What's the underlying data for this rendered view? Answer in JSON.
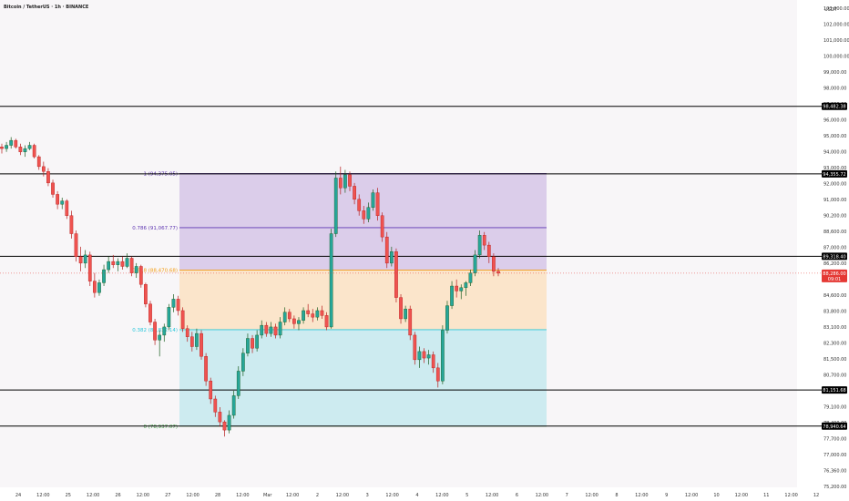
{
  "header": {
    "title": "Bitcoin / TetherUS · 1h · BINANCE",
    "currency": "USDT"
  },
  "colors": {
    "background": "#f8f6f8",
    "up": "#26a69a",
    "down": "#ef5350",
    "candle_body_up": "#1b5e20",
    "candle_body_down": "#b71c1c",
    "fib_top_zone": "#d6c6e8",
    "fib_mid_zone": "#fbe2c3",
    "fib_bottom_zone": "#c6e9ef",
    "fib_1_line": "#5e35b1",
    "fib_0786_line": "#5e35b1",
    "fib_0618_line": "#f39c12",
    "fib_0382_line": "#26c6da",
    "fib_0_line": "#43a047",
    "hline": "#000000",
    "current_price_badge": "#e53935",
    "level_badge": "#000000"
  },
  "chart_data": {
    "type": "candlestick",
    "title": "Bitcoin / TetherUS · 1h · BINANCE",
    "y_unit": "USDT",
    "ylim": [
      75200,
      104200
    ],
    "x_ticks": [
      "24",
      "12:00",
      "25",
      "12:00",
      "26",
      "12:00",
      "27",
      "12:00",
      "28",
      "12:00",
      "Mar",
      "12:00",
      "2",
      "12:00",
      "3",
      "12:00",
      "4",
      "12:00",
      "5",
      "12:00",
      "6",
      "12:00",
      "7",
      "12:00",
      "8",
      "12:00",
      "9",
      "12:00",
      "10",
      "12:00",
      "11",
      "12:00",
      "12"
    ],
    "y_ticks": [
      "103,000.00",
      "102,000.00",
      "101,000.00",
      "100,000.00",
      "99,000.00",
      "98,000.00",
      "97,000.00",
      "96,000.00",
      "95,000.00",
      "94,000.00",
      "93,000.00",
      "92,000.00",
      "91,000.00",
      "90,200.00",
      "88,600.00",
      "87,000.00",
      "86,200.00",
      "85,400.00",
      "84,600.00",
      "83,800.00",
      "83,100.00",
      "82,300.00",
      "81,500.00",
      "80,700.00",
      "79,900.00",
      "79,100.00",
      "78,400.00",
      "77,700.00",
      "77,000.00",
      "76,360.00",
      "75,200.00"
    ],
    "fib_levels": [
      {
        "ratio": "1",
        "label": "1 (94,375.05)",
        "price": 94375.05
      },
      {
        "ratio": "0.786",
        "label": "0.786 (91,067.77)",
        "price": 91067.77
      },
      {
        "ratio": "0.618",
        "label": "0.618 (88,470.68)",
        "price": 88470.68
      },
      {
        "ratio": "0.382",
        "label": "0.382 (84,832.14)",
        "price": 84832.14
      },
      {
        "ratio": "0",
        "label": "0 (78,937.07)",
        "price": 78937.07
      }
    ],
    "horizontal_levels": [
      {
        "price": 98482.38,
        "label": "98,482.38"
      },
      {
        "price": 94355.72,
        "label": "94,355.72"
      },
      {
        "price": 89318.4,
        "label": "89,318.40"
      },
      {
        "price": 81151.68,
        "label": "81,151.68"
      },
      {
        "price": 78940.64,
        "label": "78,940.64"
      }
    ],
    "current_price": {
      "price": 88286.0,
      "label": "88,286.00",
      "countdown": "09:01"
    },
    "candles": [
      [
        96000,
        96200,
        95600,
        95900
      ],
      [
        95900,
        96300,
        95700,
        96100
      ],
      [
        96100,
        96600,
        95900,
        96400
      ],
      [
        96400,
        96500,
        95900,
        96000
      ],
      [
        96000,
        96200,
        95500,
        95700
      ],
      [
        95700,
        96100,
        95400,
        95900
      ],
      [
        95900,
        96300,
        95800,
        96100
      ],
      [
        96100,
        96200,
        95300,
        95400
      ],
      [
        95400,
        95500,
        94600,
        94800
      ],
      [
        94800,
        95100,
        94200,
        94500
      ],
      [
        94500,
        94700,
        93600,
        93800
      ],
      [
        93800,
        94000,
        92900,
        93100
      ],
      [
        93100,
        93300,
        92200,
        92500
      ],
      [
        92500,
        92900,
        92200,
        92700
      ],
      [
        92700,
        92800,
        91600,
        91800
      ],
      [
        91800,
        92100,
        90400,
        90700
      ],
      [
        90700,
        90900,
        89000,
        89300
      ],
      [
        89300,
        89900,
        88400,
        88900
      ],
      [
        88900,
        89700,
        88600,
        89400
      ],
      [
        89400,
        89600,
        87500,
        87800
      ],
      [
        87800,
        88300,
        86800,
        87100
      ],
      [
        87100,
        87900,
        86900,
        87700
      ],
      [
        87700,
        88800,
        87500,
        88500
      ],
      [
        88500,
        89300,
        88300,
        89000
      ],
      [
        89000,
        89400,
        88600,
        88800
      ],
      [
        88800,
        89200,
        88400,
        89000
      ],
      [
        89000,
        89300,
        88500,
        88700
      ],
      [
        88700,
        89500,
        88600,
        89200
      ],
      [
        89200,
        89300,
        88100,
        88300
      ],
      [
        88300,
        88900,
        88000,
        88700
      ],
      [
        88700,
        88800,
        87400,
        87600
      ],
      [
        87600,
        87700,
        86200,
        86400
      ],
      [
        86400,
        86600,
        85100,
        85300
      ],
      [
        85300,
        85500,
        83900,
        84200
      ],
      [
        84200,
        84800,
        83200,
        84500
      ],
      [
        84500,
        85200,
        84100,
        85000
      ],
      [
        85000,
        86400,
        84800,
        86200
      ],
      [
        86200,
        87000,
        85900,
        86700
      ],
      [
        86700,
        86900,
        85700,
        86000
      ],
      [
        86000,
        86200,
        84700,
        84900
      ],
      [
        84900,
        85100,
        84100,
        84400
      ],
      [
        84400,
        84700,
        83500,
        83800
      ],
      [
        83800,
        84900,
        83600,
        84600
      ],
      [
        84600,
        84800,
        83000,
        83200
      ],
      [
        83200,
        83400,
        81400,
        81700
      ],
      [
        81700,
        81900,
        80300,
        80600
      ],
      [
        80600,
        80800,
        79500,
        79800
      ],
      [
        79800,
        80100,
        78900,
        79200
      ],
      [
        79200,
        79300,
        78300,
        78700
      ],
      [
        78700,
        79900,
        78500,
        79600
      ],
      [
        79600,
        81100,
        79400,
        80800
      ],
      [
        80800,
        82600,
        80600,
        82300
      ],
      [
        82300,
        83700,
        82000,
        83400
      ],
      [
        83400,
        84600,
        83200,
        84300
      ],
      [
        84300,
        84500,
        83400,
        83700
      ],
      [
        83700,
        84800,
        83500,
        84500
      ],
      [
        84500,
        85400,
        84300,
        85100
      ],
      [
        85100,
        85300,
        84400,
        84600
      ],
      [
        84600,
        85300,
        84400,
        85000
      ],
      [
        85000,
        85200,
        84300,
        84500
      ],
      [
        84500,
        85600,
        84300,
        85300
      ],
      [
        85300,
        86200,
        85100,
        85900
      ],
      [
        85900,
        86100,
        85300,
        85500
      ],
      [
        85500,
        85700,
        84900,
        85200
      ],
      [
        85200,
        85600,
        84800,
        85400
      ],
      [
        85400,
        86200,
        85200,
        86000
      ],
      [
        86000,
        86400,
        85600,
        85800
      ],
      [
        85800,
        86100,
        85300,
        85600
      ],
      [
        85600,
        86200,
        85400,
        86000
      ],
      [
        86000,
        86300,
        85500,
        85700
      ],
      [
        85700,
        85900,
        84800,
        85000
      ],
      [
        85000,
        91000,
        84900,
        90700
      ],
      [
        90700,
        94500,
        90500,
        94100
      ],
      [
        94100,
        94800,
        93100,
        93500
      ],
      [
        93500,
        94600,
        93200,
        94300
      ],
      [
        94300,
        94500,
        93300,
        93600
      ],
      [
        93600,
        93800,
        92500,
        92800
      ],
      [
        92800,
        93100,
        91800,
        92100
      ],
      [
        92100,
        92400,
        91300,
        91600
      ],
      [
        91600,
        92600,
        91400,
        92300
      ],
      [
        92300,
        93400,
        92100,
        93200
      ],
      [
        93200,
        93500,
        91500,
        91800
      ],
      [
        91800,
        92000,
        90200,
        90500
      ],
      [
        90500,
        90800,
        88600,
        88900
      ],
      [
        88900,
        89900,
        88700,
        89600
      ],
      [
        89600,
        89800,
        86500,
        86800
      ],
      [
        86800,
        87000,
        85200,
        85500
      ],
      [
        85500,
        86300,
        85300,
        86100
      ],
      [
        86100,
        86300,
        84200,
        84500
      ],
      [
        84500,
        84700,
        82700,
        83000
      ],
      [
        83000,
        83800,
        82500,
        83500
      ],
      [
        83500,
        83700,
        82800,
        83100
      ],
      [
        83100,
        83600,
        82700,
        83300
      ],
      [
        83300,
        83500,
        82200,
        82500
      ],
      [
        82500,
        82800,
        81300,
        81700
      ],
      [
        81700,
        85100,
        81500,
        84800
      ],
      [
        84800,
        86600,
        84600,
        86300
      ],
      [
        86300,
        87800,
        86100,
        87500
      ],
      [
        87500,
        87900,
        86800,
        87200
      ],
      [
        87200,
        87600,
        86700,
        87400
      ],
      [
        87400,
        87800,
        86900,
        87700
      ],
      [
        87700,
        88500,
        87500,
        88300
      ],
      [
        88300,
        89700,
        88100,
        89400
      ],
      [
        89400,
        90900,
        89200,
        90600
      ],
      [
        90600,
        90800,
        89700,
        90000
      ],
      [
        90000,
        90200,
        88900,
        89300
      ],
      [
        89300,
        89500,
        88100,
        88400
      ],
      [
        88400,
        88600,
        88100,
        88286
      ]
    ]
  }
}
